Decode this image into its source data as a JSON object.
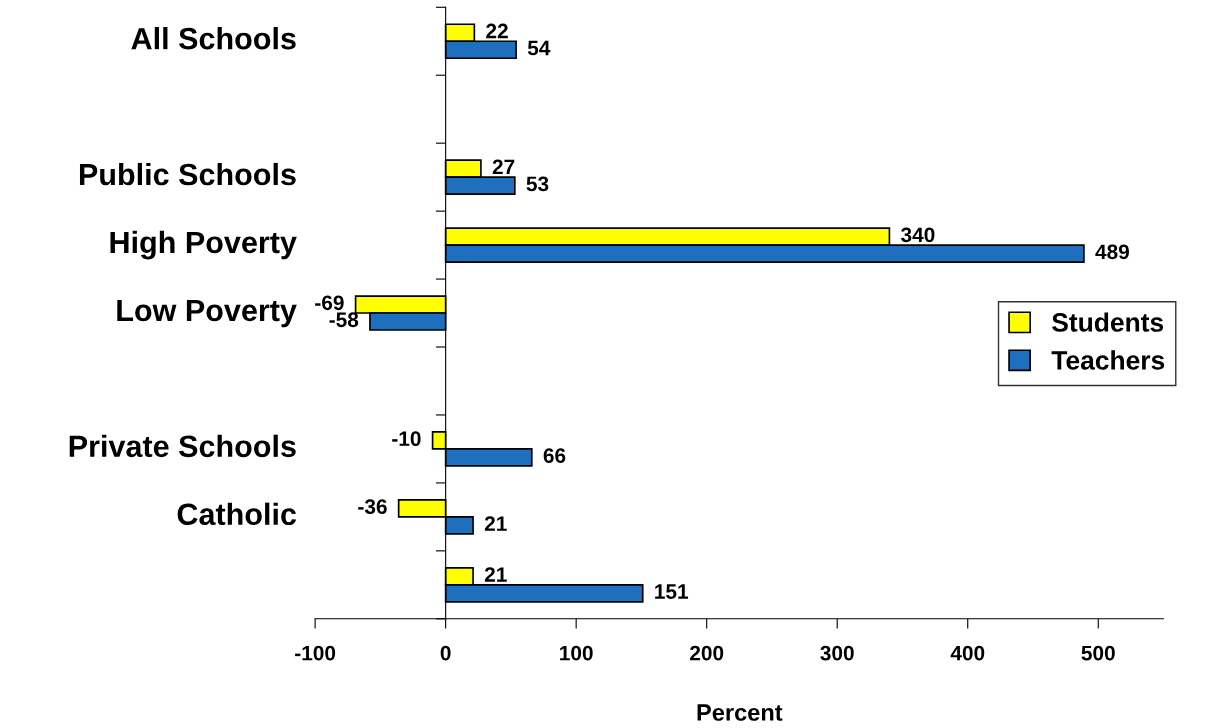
{
  "chart_data": {
    "type": "bar",
    "orientation": "horizontal",
    "categories": [
      "All Schools",
      null,
      "Public Schools",
      "High Poverty",
      "Low Poverty",
      null,
      "Private Schools",
      "Catholic",
      null
    ],
    "series": [
      {
        "name": "Students",
        "color": "#ffff00",
        "values": [
          22,
          null,
          27,
          340,
          -69,
          null,
          -10,
          -36,
          21
        ]
      },
      {
        "name": "Teachers",
        "color": "#1f6fbf",
        "values": [
          54,
          null,
          53,
          489,
          -58,
          null,
          66,
          21,
          151
        ]
      }
    ],
    "xlabel": "Percent",
    "xlim": [
      -100,
      550
    ],
    "xticks": [
      -100,
      0,
      100,
      200,
      300,
      400,
      500
    ],
    "data_labels": true,
    "legend": "right"
  }
}
